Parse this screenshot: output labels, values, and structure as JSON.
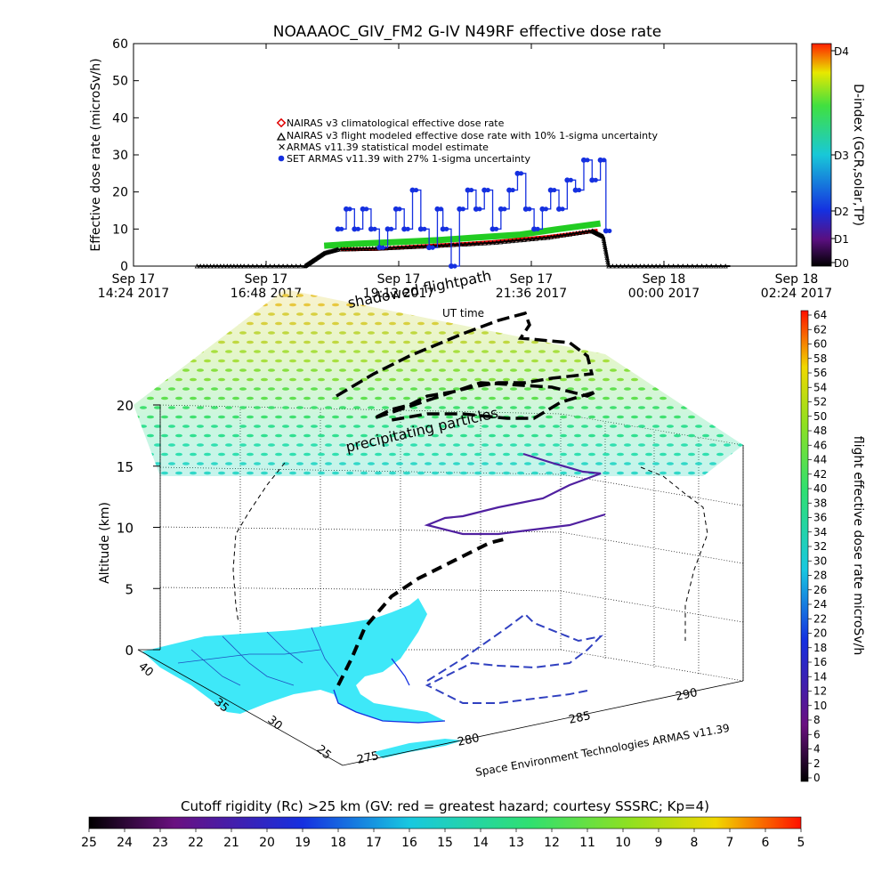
{
  "title": "NOAAAOC_GIV_FM2 G-IV   N49RF  effective dose rate",
  "chart_data": [
    {
      "type": "scatter",
      "ylabel": "Effective dose rate (microSv/h)",
      "ylim": [
        0,
        60
      ],
      "y_ticks": [
        "0",
        "10",
        "20",
        "30",
        "40",
        "50",
        "60"
      ],
      "x_ticks": [
        {
          "line1": "Sep 17",
          "line2": "14:24 2017",
          "hours": 0
        },
        {
          "line1": "Sep 17",
          "line2": "16:48 2017",
          "hours": 2.4
        },
        {
          "line1": "Sep 17",
          "line2": "19:12 2017",
          "hours": 4.8
        },
        {
          "line1": "Sep 17",
          "line2": "21:36 2017",
          "hours": 7.2
        },
        {
          "line1": "Sep 18",
          "line2": "00:00 2017",
          "hours": 9.6
        },
        {
          "line1": "Sep 18",
          "line2": "02:24 2017",
          "hours": 12.0
        }
      ],
      "legend": {
        "placement": "top-left inside plot",
        "items": [
          {
            "label": "NAIRAS v3 climatological effective dose rate",
            "color": "#e00000",
            "marker": "diamond"
          },
          {
            "label": "NAIRAS v3 flight modeled effective dose rate with 10% 1-sigma uncertainty",
            "color": "#000000",
            "marker": "triangle"
          },
          {
            "label": "ARMAS v11.39 statistical model estimate",
            "color": "#22cc22",
            "marker": "x"
          },
          {
            "label": "SET ARMAS v11.39 with 27% 1-sigma uncertainty",
            "color": "#1530e0",
            "marker": "circle"
          }
        ]
      },
      "series": [
        {
          "name": "NAIRAS v3 climatological effective dose rate",
          "color": "#e00000",
          "x": [
            3.75,
            4.4,
            5.0,
            5.5,
            6.0,
            6.5,
            7.0,
            7.5,
            8.0,
            8.4
          ],
          "y": [
            4.5,
            4.6,
            5.2,
            5.6,
            6.0,
            6.5,
            7.2,
            7.9,
            8.8,
            9.6
          ]
        },
        {
          "name": "NAIRAS v3 flight modeled effective dose rate with 10% 1-sigma uncertainty",
          "color": "#000000",
          "x": [
            1.15,
            2.0,
            3.1,
            3.25,
            3.45,
            3.7,
            4.5,
            5.5,
            6.5,
            7.5,
            8.3,
            8.5,
            8.6,
            9.6,
            10.8
          ],
          "y": [
            0,
            0,
            0,
            1.5,
            3.5,
            4.5,
            4.8,
            5.5,
            6.3,
            7.7,
            9.5,
            8.0,
            0,
            0,
            0
          ]
        },
        {
          "name": "ARMAS v11.39 statistical model estimate",
          "color": "#22cc22",
          "x": [
            3.45,
            4.0,
            4.8,
            5.5,
            6.2,
            7.0,
            7.7,
            8.45
          ],
          "y": [
            5.5,
            6.0,
            6.5,
            7.0,
            7.7,
            8.5,
            10.0,
            11.5
          ]
        },
        {
          "name": "SET ARMAS v11.39 with 27% 1-sigma uncertainty",
          "color": "#1530e0",
          "x": [
            3.7,
            3.85,
            4.0,
            4.15,
            4.3,
            4.45,
            4.6,
            4.75,
            4.9,
            5.05,
            5.2,
            5.35,
            5.5,
            5.6,
            5.75,
            5.9,
            6.05,
            6.2,
            6.35,
            6.5,
            6.65,
            6.8,
            6.95,
            7.1,
            7.25,
            7.4,
            7.55,
            7.7,
            7.85,
            8.0,
            8.15,
            8.3,
            8.45,
            8.55
          ],
          "y": [
            10,
            15.4,
            10,
            15.4,
            10,
            5,
            10,
            15.4,
            10,
            20.5,
            10,
            5,
            15.4,
            10,
            0,
            15.4,
            20.5,
            15.4,
            20.5,
            10,
            15.4,
            20.5,
            25,
            15.4,
            10,
            15.4,
            20.5,
            15.4,
            23.2,
            20.5,
            28.6,
            23.2,
            28.6,
            9.5
          ]
        }
      ]
    },
    {
      "type": "scatter",
      "title": "shadowed flightpath",
      "annotations": [
        "UT time",
        "precipitating particles"
      ],
      "zlabel": "Altitude (km)",
      "zlim": [
        0,
        20
      ],
      "z_ticks": [
        "0",
        "5",
        "10",
        "15",
        "20"
      ],
      "lat_ticks": [
        "40",
        "35",
        "30",
        "25"
      ],
      "lon_ticks": [
        "275",
        "280",
        "285",
        "290"
      ],
      "credit": "Space Environment Technologies ARMAS v11.39"
    }
  ],
  "dindex_bar": {
    "label": "D-index (GCR,solar,TP)",
    "ticks": [
      "D4",
      "D3",
      "D2",
      "D1",
      "D0"
    ]
  },
  "dose_bar": {
    "label": "flight effective dose rate microSv/h",
    "ticks": [
      "64",
      "62",
      "60",
      "58",
      "56",
      "54",
      "52",
      "50",
      "48",
      "46",
      "44",
      "42",
      "40",
      "38",
      "36",
      "34",
      "32",
      "30",
      "28",
      "26",
      "24",
      "22",
      "20",
      "18",
      "16",
      "14",
      "12",
      "10",
      "8",
      "6",
      "4",
      "2",
      "0"
    ]
  },
  "rigidity_bar": {
    "label": "Cutoff rigidity (Rc) >25 km (GV: red = greatest hazard; courtesy SSSRC; Kp=4)",
    "ticks": [
      "25",
      "24",
      "23",
      "22",
      "21",
      "20",
      "19",
      "18",
      "17",
      "16",
      "15",
      "14",
      "13",
      "12",
      "11",
      "10",
      "9",
      "8",
      "7",
      "6",
      "5"
    ]
  },
  "colors": {
    "nairas_clim": "#e00000",
    "nairas_flight": "#000000",
    "armas_model": "#22cc22",
    "set_armas": "#1530e0",
    "land": "#3ee8f8"
  }
}
